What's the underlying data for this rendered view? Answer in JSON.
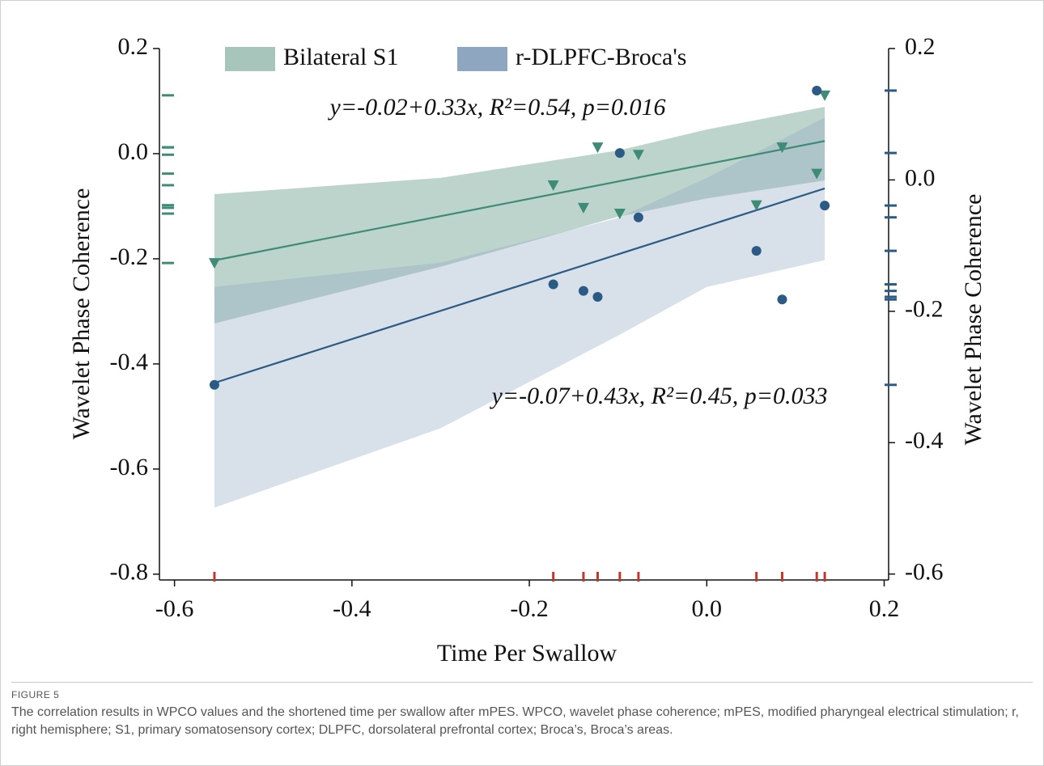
{
  "chart_data": {
    "type": "scatter",
    "x_label": "Time Per Swallow",
    "y_label": "Wavelet Phase Coherence",
    "y2_label": "Wavelet Phase Coherence",
    "xlim": [
      -0.617,
      0.205
    ],
    "xticks": [
      -0.6,
      -0.4,
      -0.2,
      {
        "value": 0,
        "label": "0.0"
      },
      0.2
    ],
    "ylim": [
      -0.811,
      0.2
    ],
    "yticks": [
      0.2,
      {
        "value": 0,
        "label": "0.0"
      },
      -0.2,
      -0.4,
      -0.6,
      -0.8
    ],
    "y2lim": [
      -0.609,
      0.2
    ],
    "y2ticks": [
      0.2,
      {
        "value": 0,
        "label": "0.0"
      },
      -0.2,
      -0.4,
      -0.6
    ],
    "x": [
      -0.555,
      -0.173,
      -0.139,
      -0.123,
      -0.098,
      -0.077,
      0.056,
      0.085,
      0.124,
      0.133
    ],
    "rug_color": "#c0392b",
    "series": [
      {
        "name": "Bilateral S1",
        "color": "#3f8c76",
        "band_color": "#a7c5bb",
        "marker": "triangle",
        "values": [
          -0.208,
          -0.06,
          -0.103,
          0.012,
          -0.114,
          -0.002,
          -0.098,
          0.012,
          -0.038,
          0.111
        ],
        "fit": {
          "x": [
            -0.555,
            0.133
          ],
          "y": [
            -0.203,
            0.024
          ]
        },
        "band": {
          "x": [
            -0.555,
            -0.3,
            -0.1,
            0,
            0.133
          ],
          "upper": [
            -0.077,
            -0.046,
            0.006,
            0.046,
            0.089
          ],
          "lower": [
            -0.323,
            -0.215,
            -0.12,
            -0.085,
            -0.051
          ]
        },
        "annotation": "y=-0.02+0.33x, R²=0.54, p=0.016"
      },
      {
        "name": "r-DLPFC-Broca's",
        "color": "#2b5b84",
        "band_color": "#8ea6bf",
        "marker": "circle",
        "axis": "y2",
        "values": [
          -0.312,
          -0.159,
          -0.169,
          -0.178,
          0.041,
          -0.057,
          -0.108,
          -0.182,
          0.136,
          -0.039
        ],
        "fit": {
          "x": [
            -0.555,
            0.133
          ],
          "y": [
            -0.309,
            -0.013
          ]
        },
        "band": {
          "x": [
            -0.555,
            -0.3,
            -0.1,
            0,
            0.133
          ],
          "upper": [
            -0.163,
            -0.126,
            -0.058,
            0.003,
            0.095
          ],
          "lower": [
            -0.499,
            -0.378,
            -0.237,
            -0.163,
            -0.122
          ]
        },
        "annotation": "y=-0.07+0.43x, R²=0.45, p=0.033"
      }
    ]
  },
  "figure": {
    "label": "FIGURE 5",
    "caption": "The correlation results in WPCO values and the shortened time per swallow after mPES. WPCO, wavelet phase coherence; mPES, modified pharyngeal electrical stimulation; r, right hemisphere; S1, primary somatosensory cortex; DLPFC, dorsolateral prefrontal cortex; Broca’s, Broca’s areas."
  }
}
